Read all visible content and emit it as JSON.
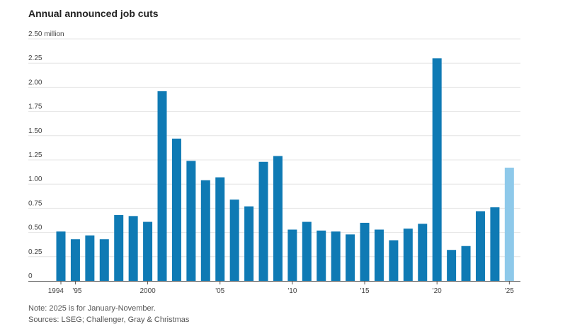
{
  "chart_data": {
    "type": "bar",
    "title": "Annual announced job cuts",
    "xlabel": "",
    "ylabel": "",
    "ylim": [
      0,
      2.5
    ],
    "y_ticks": [
      0,
      0.25,
      0.5,
      0.75,
      1.0,
      1.25,
      1.5,
      1.75,
      2.0,
      2.25,
      2.5
    ],
    "y_tick_labels": [
      "0",
      "0.25",
      "0.50",
      "0.75",
      "1.00",
      "1.25",
      "1.50",
      "1.75",
      "2.00",
      "2.25",
      "2.50 million"
    ],
    "categories": [
      "1994",
      "1995",
      "1996",
      "1997",
      "1998",
      "1999",
      "2000",
      "2001",
      "2002",
      "2003",
      "2004",
      "2005",
      "2006",
      "2007",
      "2008",
      "2009",
      "2010",
      "2011",
      "2012",
      "2013",
      "2014",
      "2015",
      "2016",
      "2017",
      "2018",
      "2019",
      "2020",
      "2021",
      "2022",
      "2023",
      "2024",
      "2025"
    ],
    "values": [
      0.51,
      0.43,
      0.47,
      0.43,
      0.68,
      0.67,
      0.61,
      1.96,
      1.47,
      1.24,
      1.04,
      1.07,
      0.84,
      0.77,
      1.23,
      1.29,
      0.53,
      0.61,
      0.52,
      0.51,
      0.48,
      0.6,
      0.53,
      0.42,
      0.54,
      0.59,
      2.3,
      0.32,
      0.36,
      0.72,
      0.76,
      1.17
    ],
    "x_tick_labels": [
      {
        "category": "1994",
        "label": "1994"
      },
      {
        "category": "1995",
        "label": "'95"
      },
      {
        "category": "2000",
        "label": "2000"
      },
      {
        "category": "2005",
        "label": "'05"
      },
      {
        "category": "2010",
        "label": "'10"
      },
      {
        "category": "2015",
        "label": "'15"
      },
      {
        "category": "2020",
        "label": "'20"
      },
      {
        "category": "2025",
        "label": "'25"
      }
    ],
    "highlight_category": "2025",
    "colors": {
      "bar": "#0f7ab4",
      "highlight": "#8ec9ea",
      "grid": "#e4e4e4",
      "axis": "#555555"
    }
  },
  "notes": {
    "note": "Note: 2025 is for January-November.",
    "sources": "Sources: LSEG; Challenger, Gray & Christmas"
  }
}
